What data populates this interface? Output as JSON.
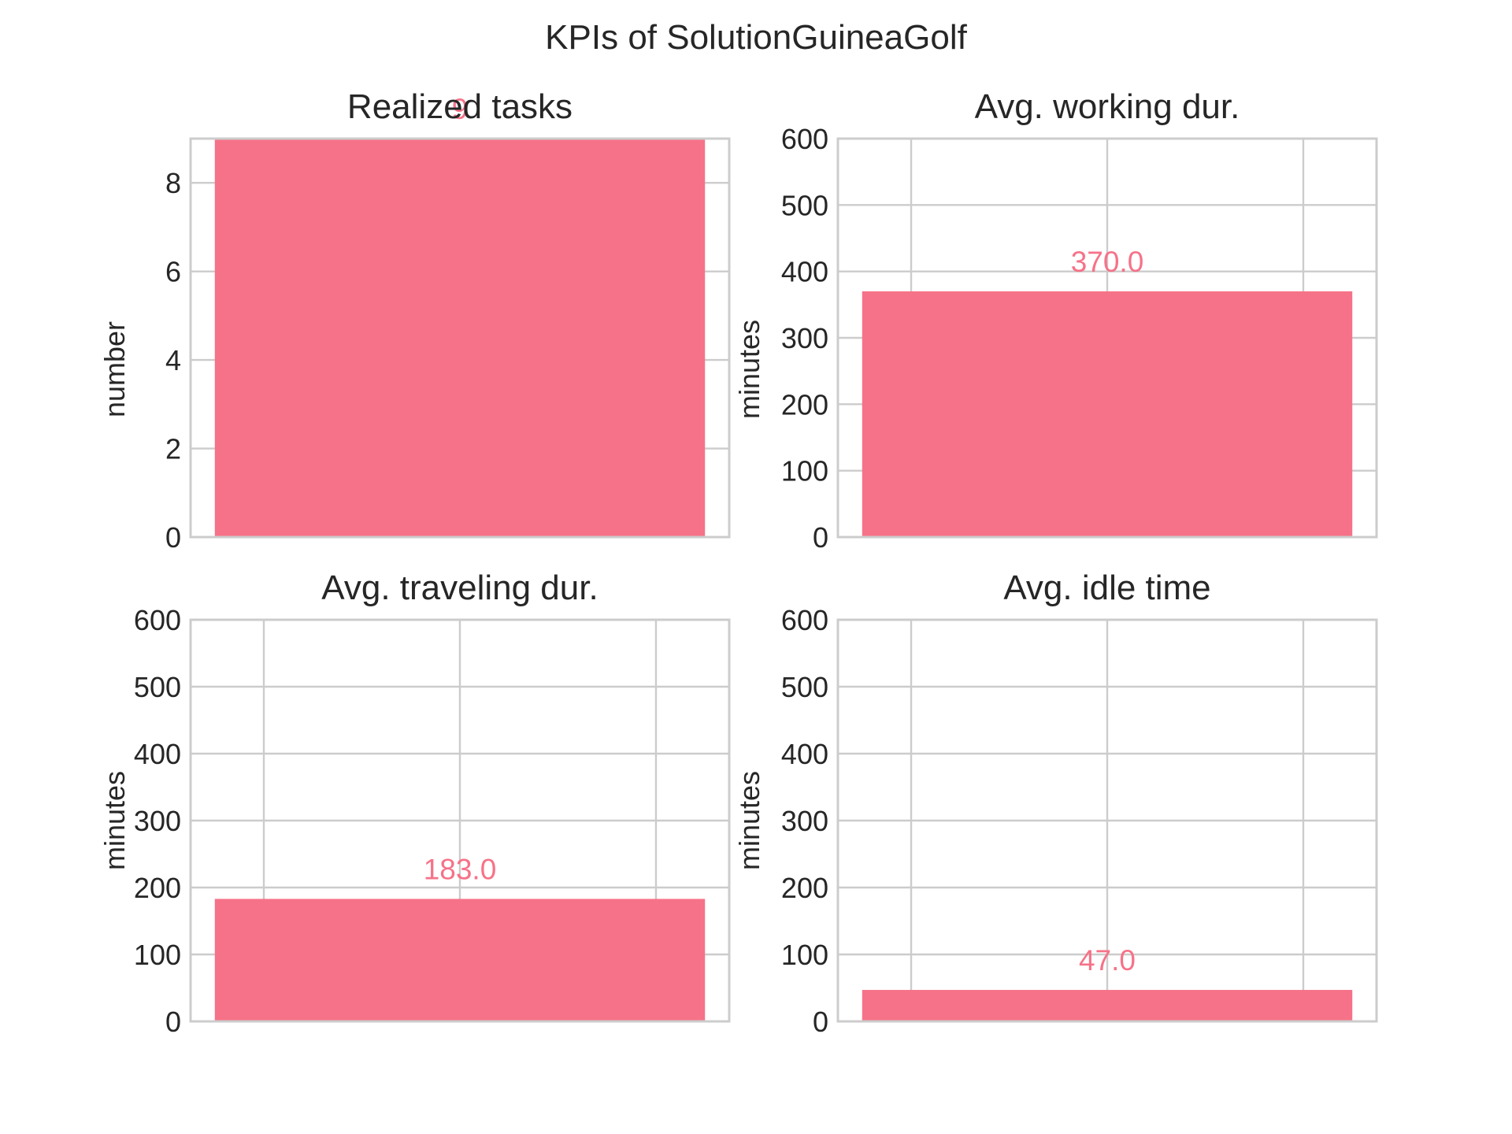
{
  "figure": {
    "suptitle": "KPIs of SolutionGuineaGolf"
  },
  "colors": {
    "bar": "#f67288",
    "value_label": "#f67288",
    "grid": "#cccccc",
    "spine": "#cccccc",
    "text": "#262626",
    "background": "#ffffff"
  },
  "chart_data": [
    {
      "type": "bar",
      "title": "Realized tasks",
      "ylabel": "number",
      "xlabel": "",
      "categories": [
        ""
      ],
      "values": [
        9
      ],
      "value_labels": [
        "9"
      ],
      "ylim": [
        0,
        9
      ],
      "yticks": [
        0,
        2,
        4,
        6,
        8
      ],
      "ytick_labels": [
        "0",
        "2",
        "4",
        "6",
        "8"
      ],
      "grid": true,
      "x_gridlines": false
    },
    {
      "type": "bar",
      "title": "Avg. working dur.",
      "ylabel": "minutes",
      "xlabel": "",
      "categories": [
        ""
      ],
      "values": [
        370.0
      ],
      "value_labels": [
        "370.0"
      ],
      "ylim": [
        0,
        600
      ],
      "yticks": [
        0,
        100,
        200,
        300,
        400,
        500,
        600
      ],
      "ytick_labels": [
        "0",
        "100",
        "200",
        "300",
        "400",
        "500",
        "600"
      ],
      "grid": true,
      "x_gridlines": true
    },
    {
      "type": "bar",
      "title": "Avg. traveling dur.",
      "ylabel": "minutes",
      "xlabel": "",
      "categories": [
        ""
      ],
      "values": [
        183.0
      ],
      "value_labels": [
        "183.0"
      ],
      "ylim": [
        0,
        600
      ],
      "yticks": [
        0,
        100,
        200,
        300,
        400,
        500,
        600
      ],
      "ytick_labels": [
        "0",
        "100",
        "200",
        "300",
        "400",
        "500",
        "600"
      ],
      "grid": true,
      "x_gridlines": true
    },
    {
      "type": "bar",
      "title": "Avg. idle time",
      "ylabel": "minutes",
      "xlabel": "",
      "categories": [
        ""
      ],
      "values": [
        47.0
      ],
      "value_labels": [
        "47.0"
      ],
      "ylim": [
        0,
        600
      ],
      "yticks": [
        0,
        100,
        200,
        300,
        400,
        500,
        600
      ],
      "ytick_labels": [
        "0",
        "100",
        "200",
        "300",
        "400",
        "500",
        "600"
      ],
      "grid": true,
      "x_gridlines": true
    }
  ]
}
